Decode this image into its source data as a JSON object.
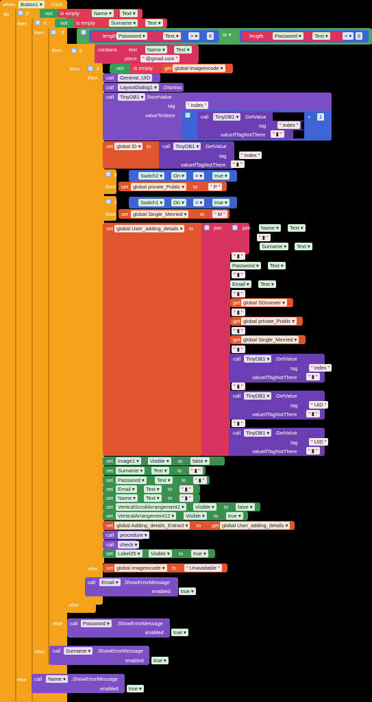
{
  "event": {
    "when": "when",
    "component": "Button1",
    "event": "Click",
    "do": "do"
  },
  "kw": {
    "if": "if",
    "then": "then",
    "else": "else",
    "not": "not",
    "is_empty": "is empty",
    "call": "call",
    "set": "set",
    "get": "get",
    "to": "to",
    "or": "or",
    "length": "length",
    "contains": "contains",
    "text": "text",
    "piece": "piece",
    "join": "join",
    "tag": "tag",
    "valueToStore": "valueToStore",
    "valueIfTagNotThere": "valueIfTagNotThere",
    "enabled": "enabled",
    "true": "true",
    "false": "false",
    "gt": ">",
    "eq": "="
  },
  "strings": {
    "gmail": "@gmail.com",
    "index": "index",
    "P": "P",
    "M": "M",
    "empty": "",
    "UID_quoted": "UID",
    "unavailable": "Unavailable",
    "six": "6",
    "one": "1"
  },
  "components": {
    "Name": "Name",
    "Surname": "Surname",
    "Password": "Password",
    "Email": "Email",
    "Text": "Text",
    "TinyDB1": "TinyDB1",
    "Switch2": "Switch2",
    "Switch1": "Switch1",
    "On": "On",
    "Image1": "Image1",
    "Visible": "Visible",
    "VerticalScrollArrangement1": "VerticalScrollArrangement1",
    "VerticalArrangement12": "VerticalArrangement12",
    "Label25": "Label25"
  },
  "methods": {
    "GenerateUID": "Generat..UID",
    "LayoutDialog1": "LayoutDialog1",
    "Dismiss": ".Dismiss",
    "StoreValue": ".StoreValue",
    "GetValue": ".GetValue",
    "ShowErrorMessage": ".ShowErrorMessage",
    "procedure": "procedure",
    "check": "check"
  },
  "globals": {
    "imageincode": "global imageincode",
    "ID": "global ID",
    "private_Public": "global private_Public",
    "Single_Merried": "global Single_Merried",
    "User_adding_details": "global User_adding_details",
    "SDconver": "global SDconver",
    "Adding_details_Extract": "global Adding_details_Extract"
  }
}
